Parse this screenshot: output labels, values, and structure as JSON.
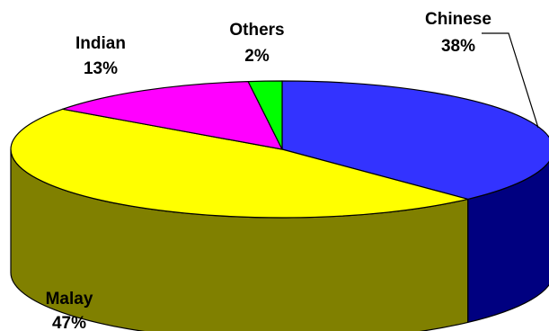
{
  "chart_data": {
    "type": "pie",
    "style": "3d",
    "title": "",
    "categories": [
      "Chinese",
      "Malay",
      "Indian",
      "Others"
    ],
    "values": [
      38,
      47,
      13,
      2
    ],
    "value_labels": [
      "38%",
      "47%",
      "13%",
      "2%"
    ],
    "colors": {
      "Chinese": {
        "top": "#3333ff",
        "side": "#000080"
      },
      "Malay": {
        "top": "#ffff00",
        "side": "#808000"
      },
      "Indian": {
        "top": "#ff00ff",
        "side": "#800080"
      },
      "Others": {
        "top": "#00ff00",
        "side": "#008000"
      }
    },
    "start_angle_deg": 90,
    "direction": "clockwise",
    "legend": "none"
  }
}
